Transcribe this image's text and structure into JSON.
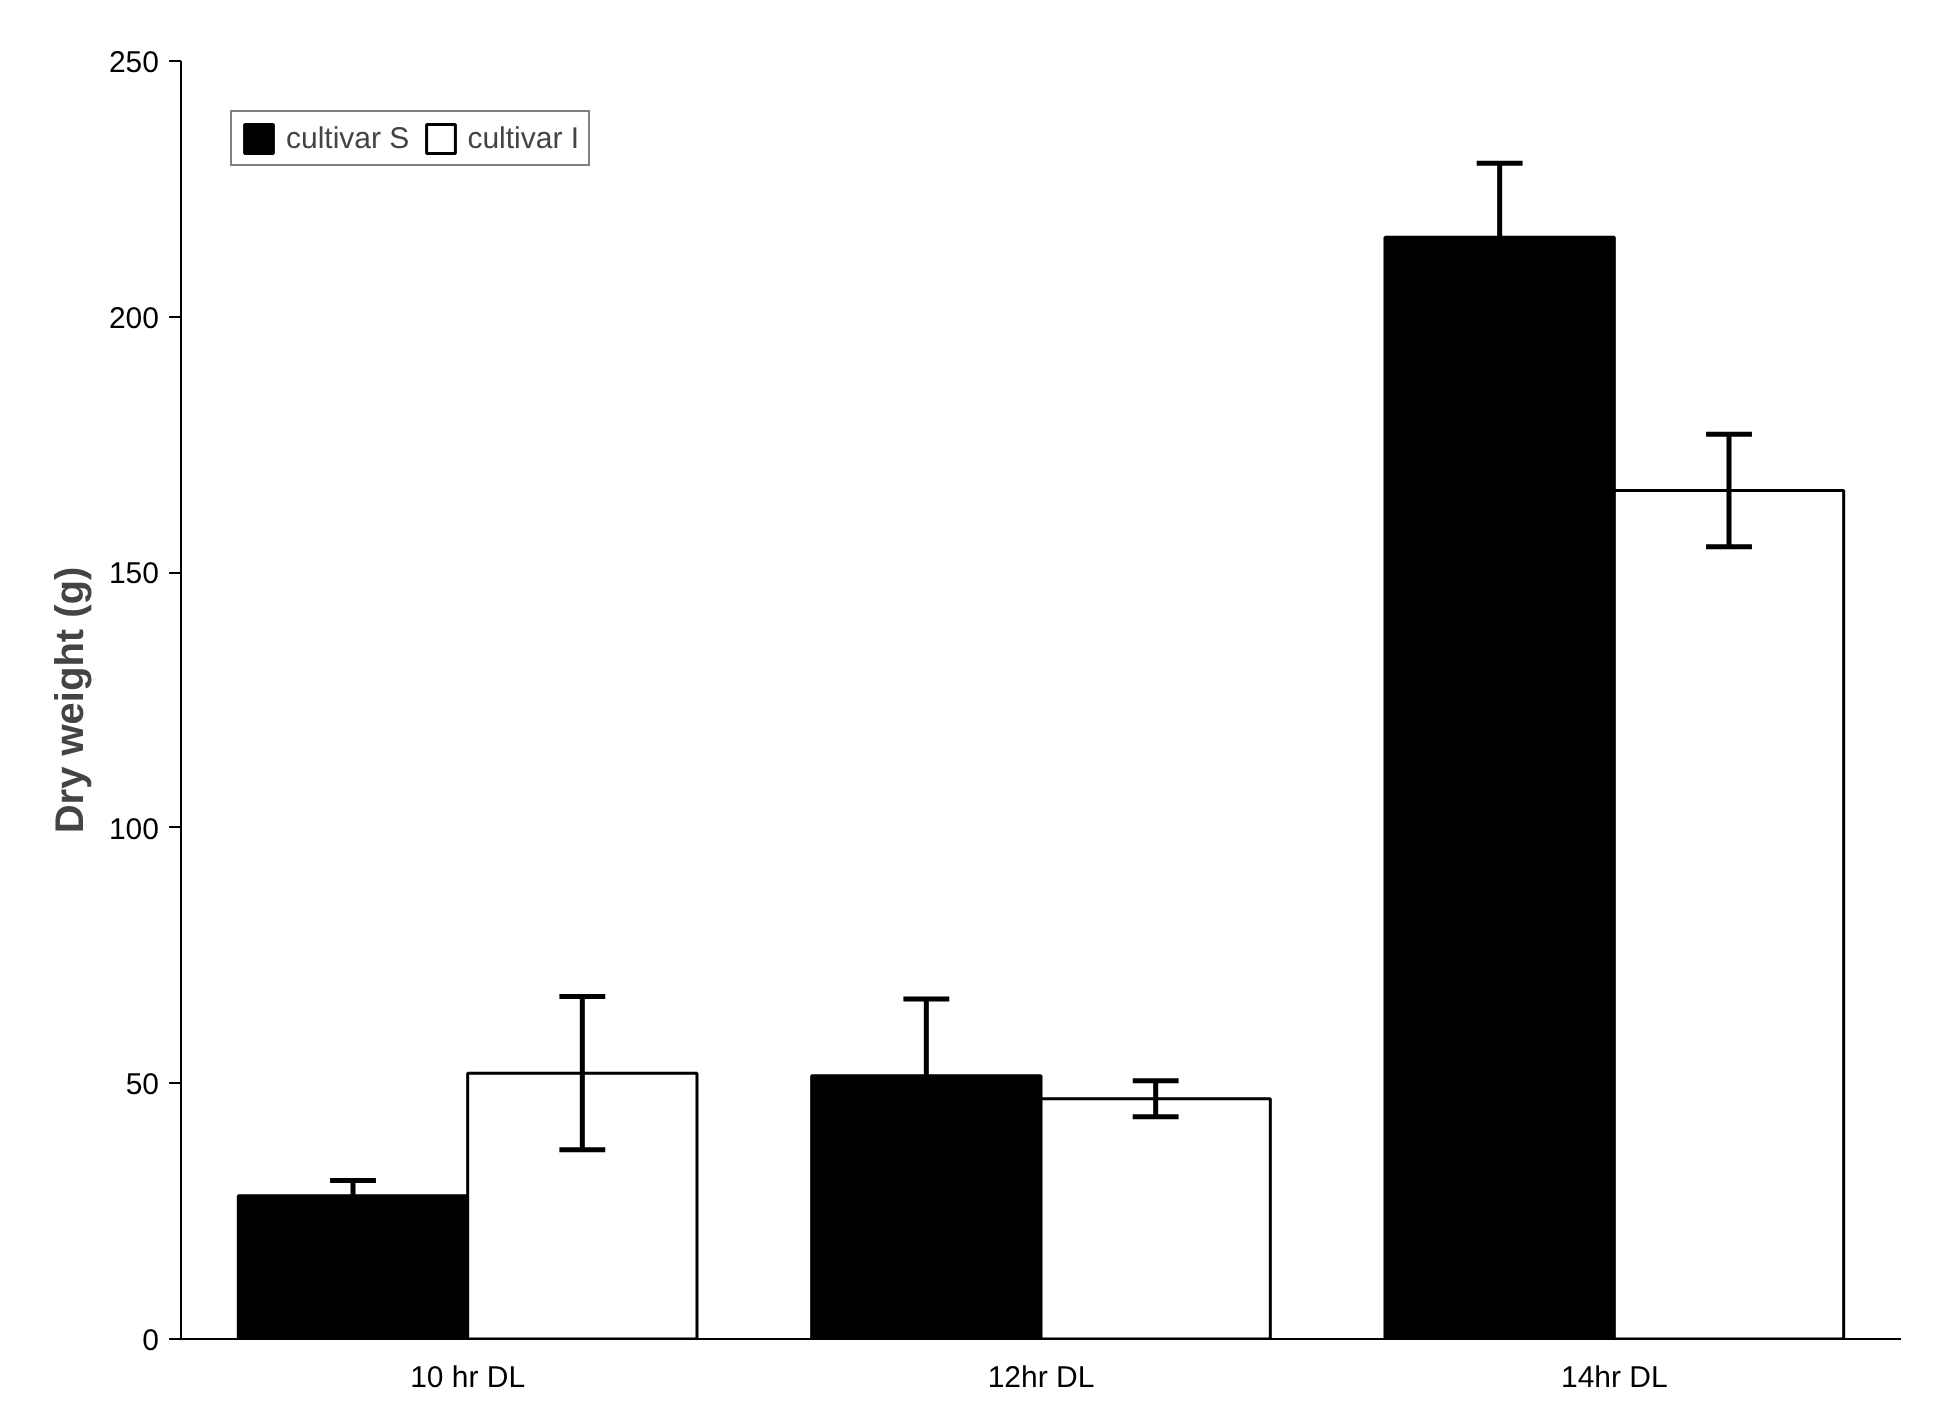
{
  "chart_data": {
    "type": "bar",
    "ylabel": "Dry weight (g)",
    "categories": [
      "10 hr DL",
      "12hr DL",
      "14hr DL"
    ],
    "series": [
      {
        "name": "cultivar S",
        "color": "#000000",
        "values": [
          28,
          51.5,
          215.5
        ],
        "errors": [
          3,
          15,
          14.5
        ]
      },
      {
        "name": "cultivar I",
        "color": "#ffffff",
        "values": [
          52,
          47,
          166
        ],
        "errors": [
          15,
          3.5,
          11
        ]
      }
    ],
    "ylim": [
      0,
      250
    ],
    "yticks": [
      0,
      50,
      100,
      150,
      200,
      250
    ],
    "grid": false,
    "legend": "top left"
  }
}
